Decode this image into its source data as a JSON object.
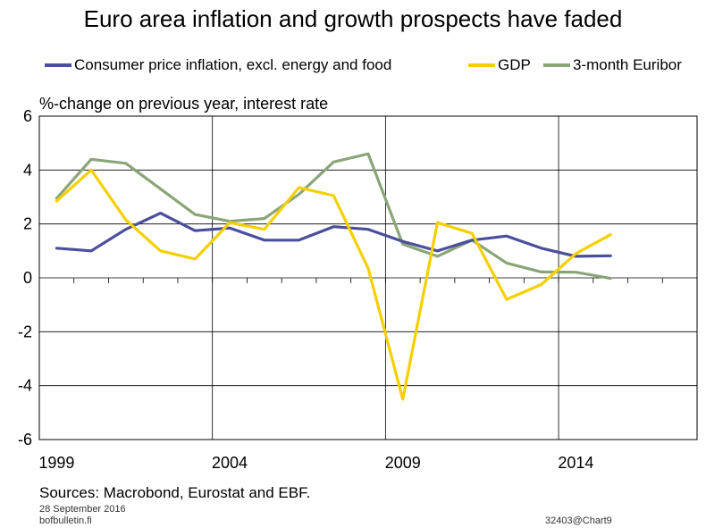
{
  "chart_data": {
    "type": "line",
    "title": "Euro area inflation and growth prospects have faded",
    "ylabel": "%-change on previous year, interest rate",
    "xlabel": "",
    "ylim": [
      -6,
      6
    ],
    "yticks": [
      6,
      4,
      2,
      0,
      -2,
      -4,
      -6
    ],
    "xlim": [
      1998.5,
      2017.5
    ],
    "xtick_labels": [
      1999,
      2004,
      2009,
      2014
    ],
    "grid": true,
    "legend_position": "top",
    "x": [
      1999,
      2000,
      2001,
      2002,
      2003,
      2004,
      2005,
      2006,
      2007,
      2008,
      2009,
      2010,
      2011,
      2012,
      2013,
      2014,
      2015
    ],
    "series": [
      {
        "name": "Consumer price inflation, excl. energy and food",
        "color": "#4a4f9c",
        "values": [
          1.1,
          1.0,
          1.8,
          2.4,
          1.75,
          1.85,
          1.4,
          1.4,
          1.9,
          1.8,
          1.35,
          1.0,
          1.4,
          1.55,
          1.1,
          0.8,
          0.82
        ]
      },
      {
        "name": "GDP",
        "color": "#f5d000",
        "values": [
          2.85,
          4.0,
          2.15,
          1.0,
          0.7,
          2.05,
          1.8,
          3.35,
          3.05,
          0.35,
          -4.5,
          2.05,
          1.65,
          -0.8,
          -0.25,
          0.9,
          1.6
        ]
      },
      {
        "name": "3-month Euribor",
        "color": "#8aa578",
        "values": [
          2.95,
          4.4,
          4.25,
          3.3,
          2.35,
          2.1,
          2.2,
          3.1,
          4.3,
          4.6,
          1.25,
          0.8,
          1.4,
          0.55,
          0.22,
          0.21,
          -0.02
        ]
      }
    ]
  },
  "footer": {
    "sources": "Sources: Macrobond, Eurostat and EBF.",
    "date": "28 September 2016",
    "site": "bofbulletin.fi",
    "chart_id": "32403@Chart9"
  }
}
